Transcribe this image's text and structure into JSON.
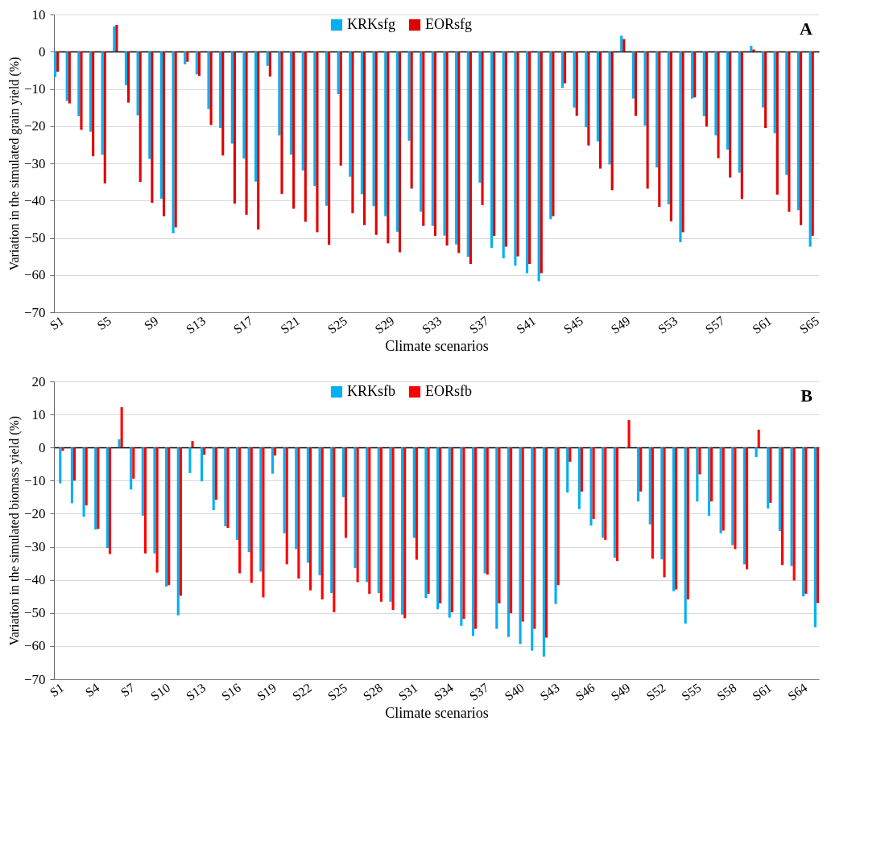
{
  "chart_data": [
    {
      "type": "bar",
      "xlabel": "Climate scenarios",
      "ylabel": "Variation in the simulated grain yield (%)",
      "annotations": [
        "A"
      ],
      "legend": "top",
      "grid": "y",
      "ylim": [
        -70,
        10
      ],
      "yticks": [
        -70,
        -60,
        -50,
        -40,
        -30,
        -20,
        -10,
        0,
        10
      ],
      "categories": [
        "S1",
        null,
        null,
        null,
        "S5",
        null,
        null,
        null,
        "S9",
        null,
        null,
        null,
        "S13",
        null,
        null,
        null,
        "S17",
        null,
        null,
        null,
        "S21",
        null,
        null,
        null,
        "S25",
        null,
        null,
        null,
        "S29",
        null,
        null,
        null,
        "S33",
        null,
        null,
        null,
        "S37",
        null,
        null,
        null,
        "S41",
        null,
        null,
        null,
        "S45",
        null,
        null,
        null,
        "S49",
        null,
        null,
        null,
        "S53",
        null,
        null,
        null,
        "S57",
        null,
        null,
        null,
        "S61",
        null,
        null,
        null,
        "S65"
      ],
      "series": [
        {
          "name": "KRKsfg",
          "color": "#00b0f0",
          "values": [
            -6.8,
            -13.2,
            -17.3,
            -21.5,
            -27.7,
            6.8,
            -9.0,
            -17.1,
            -28.8,
            -39.5,
            -48.8,
            -3.4,
            -6.1,
            -15.4,
            -20.5,
            -24.7,
            -28.7,
            -34.9,
            -3.8,
            -22.5,
            -27.7,
            -31.9,
            -36.1,
            -41.4,
            -11.4,
            -33.6,
            -38.3,
            -41.5,
            -44.2,
            -48.4,
            -23.9,
            -43.0,
            -46.8,
            -49.4,
            -51.8,
            -55.1,
            -35.2,
            -52.7,
            -55.5,
            -57.5,
            -59.5,
            -61.7,
            -45.0,
            -9.7,
            -15.0,
            -20.3,
            -24.1,
            -30.3,
            4.3,
            -12.6,
            -19.9,
            -31.1,
            -41.0,
            -51.2,
            -12.6,
            -17.3,
            -22.5,
            -26.3,
            -32.5,
            1.6,
            -15.0,
            -21.9,
            -33.1,
            -42.6,
            -52.4
          ]
        },
        {
          "name": "EORsfg",
          "color": "#e00000",
          "values": [
            -5.4,
            -13.9,
            -21.0,
            -28.1,
            -35.4,
            7.2,
            -13.7,
            -35.0,
            -40.6,
            -44.2,
            -47.2,
            -2.7,
            -6.5,
            -19.7,
            -27.9,
            -40.8,
            -43.8,
            -47.8,
            -6.7,
            -38.2,
            -42.2,
            -45.7,
            -48.5,
            -51.9,
            -30.6,
            -43.4,
            -46.6,
            -49.2,
            -51.5,
            -53.9,
            -36.8,
            -46.8,
            -49.5,
            -52.1,
            -54.1,
            -57.0,
            -41.2,
            -49.5,
            -52.4,
            -55.0,
            -57.0,
            -59.5,
            -44.2,
            -8.5,
            -17.2,
            -25.2,
            -31.4,
            -37.2,
            3.4,
            -17.2,
            -36.8,
            -41.7,
            -45.6,
            -48.5,
            -12.3,
            -20.1,
            -28.6,
            -33.8,
            -39.6,
            0.6,
            -20.5,
            -38.4,
            -43.0,
            -46.6,
            -49.5
          ]
        }
      ]
    },
    {
      "type": "bar",
      "xlabel": "Climate scenarios",
      "ylabel": "Variation in the simulated biomass yield (%)",
      "annotations": [
        "B"
      ],
      "legend": "top",
      "grid": "y",
      "ylim": [
        -70,
        20
      ],
      "yticks": [
        -70,
        -60,
        -50,
        -40,
        -30,
        -20,
        -10,
        0,
        10,
        20
      ],
      "categories": [
        "S1",
        null,
        null,
        "S4",
        null,
        null,
        "S7",
        null,
        null,
        "S10",
        null,
        null,
        "S13",
        null,
        null,
        "S16",
        null,
        null,
        "S19",
        null,
        null,
        "S22",
        null,
        null,
        "S25",
        null,
        null,
        "S28",
        null,
        null,
        "S31",
        null,
        null,
        "S34",
        null,
        null,
        "S37",
        null,
        null,
        "S40",
        null,
        null,
        "S43",
        null,
        null,
        "S46",
        null,
        null,
        "S49",
        null,
        null,
        "S52",
        null,
        null,
        "S55",
        null,
        null,
        "S58",
        null,
        null,
        "S61",
        null,
        null,
        "S64",
        null
      ],
      "series": [
        {
          "name": "KRKsfb",
          "color": "#00b0f0",
          "values": [
            -10.8,
            -16.8,
            -20.9,
            -24.8,
            -30.4,
            2.5,
            -12.7,
            -20.6,
            -32.0,
            -42.0,
            -50.7,
            -7.7,
            -10.2,
            -18.9,
            -23.8,
            -27.9,
            -31.6,
            -37.5,
            -7.9,
            -25.9,
            -30.7,
            -34.8,
            -38.6,
            -44.0,
            -15.0,
            -36.4,
            -40.7,
            -44.0,
            -46.6,
            -50.5,
            -27.3,
            -45.5,
            -48.9,
            -51.4,
            -53.9,
            -56.9,
            -38.0,
            -54.8,
            -57.3,
            -59.4,
            -61.4,
            -63.2,
            -47.3,
            -13.6,
            -18.6,
            -23.6,
            -27.3,
            -33.3,
            -0.2,
            -16.3,
            -23.2,
            -33.8,
            -43.4,
            -53.2,
            -16.3,
            -20.6,
            -25.9,
            -29.5,
            -35.3,
            -2.9,
            -18.4,
            -25.2,
            -35.8,
            -45.0,
            -54.3
          ]
        },
        {
          "name": "EORsfb",
          "color": "#ff0000",
          "values": [
            -1.0,
            -10.0,
            -17.5,
            -24.6,
            -32.2,
            12.2,
            -9.4,
            -32.0,
            -37.8,
            -41.6,
            -44.8,
            2.0,
            -2.2,
            -15.8,
            -24.3,
            -38.0,
            -40.9,
            -45.3,
            -2.4,
            -35.3,
            -39.6,
            -43.2,
            -45.9,
            -49.8,
            -27.3,
            -40.7,
            -44.2,
            -46.6,
            -49.1,
            -51.6,
            -33.9,
            -44.2,
            -47.1,
            -49.8,
            -51.8,
            -54.8,
            -38.4,
            -47.1,
            -50.1,
            -52.6,
            -54.8,
            -57.5,
            -41.6,
            -4.3,
            -13.3,
            -21.6,
            -27.9,
            -34.3,
            8.3,
            -13.3,
            -33.6,
            -39.2,
            -42.9,
            -45.9,
            -8.1,
            -16.3,
            -25.1,
            -30.7,
            -36.8,
            5.4,
            -16.7,
            -35.5,
            -40.2,
            -44.2,
            -47.0
          ]
        }
      ]
    }
  ]
}
